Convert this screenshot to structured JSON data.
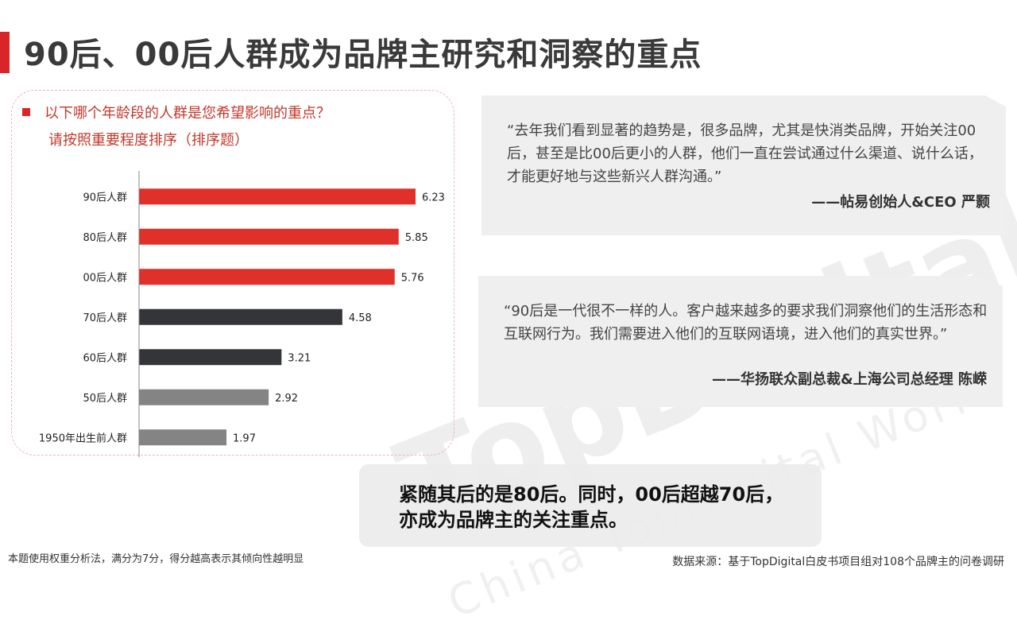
{
  "title": "90后、00后人群成为品牌主研究和洞察的重点",
  "question": {
    "line1": "以下哪个年龄段的人群是您希望影响的重点？",
    "line2": "请按照重要程度排序（排序题）"
  },
  "colors": {
    "accent": "#d9252a",
    "bar_red": "#e0302a",
    "bar_dark": "#333538",
    "bar_gray": "#848484"
  },
  "chart_data": {
    "type": "bar",
    "orientation": "horizontal",
    "categories": [
      "90后人群",
      "80后人群",
      "00后人群",
      "70后人群",
      "60后人群",
      "50后人群",
      "1950年出生前人群"
    ],
    "values": [
      6.23,
      5.85,
      5.76,
      4.58,
      3.21,
      2.92,
      1.97
    ],
    "bar_colors": [
      "#e0302a",
      "#e0302a",
      "#e0302a",
      "#333538",
      "#333538",
      "#848484",
      "#848484"
    ],
    "title": "",
    "xlabel": "",
    "ylabel": "",
    "xlim": [
      0,
      7
    ],
    "grid": false
  },
  "quotes": [
    {
      "text": "“去年我们看到显著的趋势是，很多品牌，尤其是快消类品牌，开始关注00后，甚至是比00后更小的人群，他们一直在尝试通过什么渠道、说什么话，才能更好地与这些新兴人群沟通。”",
      "author": "——帖易创始人&CEO 严颢"
    },
    {
      "text": "“90后是一代很不一样的人。客户越来越多的要求我们洞察他们的生活形态和互联网行为。我们需要进入他们的互联网语境，进入他们的真实世界。”",
      "author": "——华扬联众副总裁&上海公司总经理 陈嵘"
    }
  ],
  "summary": "紧随其后的是80后。同时，00后超越70后，亦成为品牌主的关注重点。",
  "footnote": "本题使用权重分析法，满分为7分，得分越高表示其倾向性越明显",
  "source": "数据来源：基于TopDigital白皮书项目组对108个品牌主的问卷调研",
  "watermark": {
    "main": "TopDigital",
    "sub": "China TopDigital World"
  }
}
